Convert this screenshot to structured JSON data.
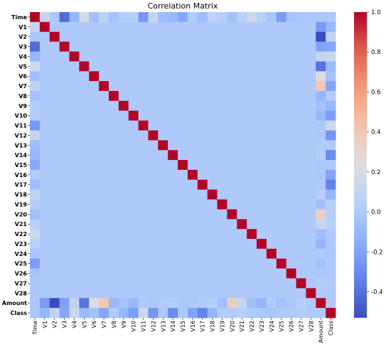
{
  "chart_data": {
    "type": "heatmap",
    "title": "Correlation Matrix",
    "labels": [
      "Time",
      "V1",
      "V2",
      "V3",
      "V4",
      "V5",
      "V6",
      "V7",
      "V8",
      "V9",
      "V10",
      "V11",
      "V12",
      "V13",
      "V14",
      "V15",
      "V16",
      "V17",
      "V18",
      "V19",
      "V20",
      "V21",
      "V22",
      "V23",
      "V24",
      "V25",
      "V26",
      "V27",
      "V28",
      "Amount",
      "Class"
    ],
    "colormap": "coolwarm",
    "vmin": -0.53,
    "vmax": 1.0,
    "colorbar_ticks": [
      "1.0",
      "0.8",
      "0.6",
      "0.4",
      "0.2",
      "0.0",
      "-0.2",
      "-0.4"
    ],
    "colorbar_tick_values": [
      1.0,
      0.8,
      0.6,
      0.4,
      0.2,
      0.0,
      -0.2,
      -0.4
    ],
    "matrix": [
      [
        1.0,
        0.12,
        -0.01,
        -0.42,
        -0.11,
        0.17,
        -0.06,
        0.08,
        -0.04,
        0.03,
        0.03,
        -0.25,
        0.12,
        -0.07,
        -0.1,
        -0.18,
        0.01,
        -0.07,
        0.09,
        0.03,
        -0.05,
        0.04,
        0.14,
        0.05,
        -0.02,
        -0.23,
        -0.04,
        -0.01,
        -0.01,
        -0.01,
        -0.01
      ],
      [
        0.12,
        1.0,
        0,
        0,
        0,
        0,
        0,
        0,
        0,
        0,
        0,
        0,
        0,
        0,
        0,
        0,
        0,
        0,
        0,
        0,
        0,
        0,
        0,
        0,
        0,
        0,
        0,
        0,
        0,
        -0.23,
        -0.1
      ],
      [
        -0.01,
        0,
        1.0,
        0,
        0,
        0,
        0,
        0,
        0,
        0,
        0,
        0,
        0,
        0,
        0,
        0,
        0,
        0,
        0,
        0,
        0,
        0,
        0,
        0,
        0,
        0,
        0,
        0,
        0,
        -0.53,
        0.09
      ],
      [
        -0.42,
        0,
        0,
        1.0,
        0,
        0,
        0,
        0,
        0,
        0,
        0,
        0,
        0,
        0,
        0,
        0,
        0,
        0,
        0,
        0,
        0,
        0,
        0,
        0,
        0,
        0,
        0,
        0,
        0,
        -0.21,
        -0.19
      ],
      [
        -0.11,
        0,
        0,
        0,
        1.0,
        0,
        0,
        0,
        0,
        0,
        0,
        0,
        0,
        0,
        0,
        0,
        0,
        0,
        0,
        0,
        0,
        0,
        0,
        0,
        0,
        0,
        0,
        0,
        0,
        0.1,
        0.13
      ],
      [
        0.17,
        0,
        0,
        0,
        0,
        1.0,
        0,
        0,
        0,
        0,
        0,
        0,
        0,
        0,
        0,
        0,
        0,
        0,
        0,
        0,
        0,
        0,
        0,
        0,
        0,
        0,
        0,
        0,
        0,
        -0.39,
        -0.09
      ],
      [
        -0.06,
        0,
        0,
        0,
        0,
        0,
        1.0,
        0,
        0,
        0,
        0,
        0,
        0,
        0,
        0,
        0,
        0,
        0,
        0,
        0,
        0,
        0,
        0,
        0,
        0,
        0,
        0,
        0,
        0,
        0.22,
        -0.04
      ],
      [
        0.08,
        0,
        0,
        0,
        0,
        0,
        0,
        1.0,
        0,
        0,
        0,
        0,
        0,
        0,
        0,
        0,
        0,
        0,
        0,
        0,
        0,
        0,
        0,
        0,
        0,
        0,
        0,
        0,
        0,
        0.4,
        -0.19
      ],
      [
        -0.04,
        0,
        0,
        0,
        0,
        0,
        0,
        0,
        1.0,
        0,
        0,
        0,
        0,
        0,
        0,
        0,
        0,
        0,
        0,
        0,
        0,
        0,
        0,
        0,
        0,
        0,
        0,
        0,
        0,
        -0.1,
        0.02
      ],
      [
        0.03,
        0,
        0,
        0,
        0,
        0,
        0,
        0,
        0,
        1.0,
        0,
        0,
        0,
        0,
        0,
        0,
        0,
        0,
        0,
        0,
        0,
        0,
        0,
        0,
        0,
        0,
        0,
        0,
        0,
        -0.04,
        -0.1
      ],
      [
        0.03,
        0,
        0,
        0,
        0,
        0,
        0,
        0,
        0,
        0,
        1.0,
        0,
        0,
        0,
        0,
        0,
        0,
        0,
        0,
        0,
        0,
        0,
        0,
        0,
        0,
        0,
        0,
        0,
        0,
        -0.1,
        -0.22
      ],
      [
        -0.25,
        0,
        0,
        0,
        0,
        0,
        0,
        0,
        0,
        0,
        0,
        1.0,
        0,
        0,
        0,
        0,
        0,
        0,
        0,
        0,
        0,
        0,
        0,
        0,
        0,
        0,
        0,
        0,
        0,
        0.0,
        0.15
      ],
      [
        0.12,
        0,
        0,
        0,
        0,
        0,
        0,
        0,
        0,
        0,
        0,
        0,
        1.0,
        0,
        0,
        0,
        0,
        0,
        0,
        0,
        0,
        0,
        0,
        0,
        0,
        0,
        0,
        0,
        0,
        -0.01,
        -0.26
      ],
      [
        -0.07,
        0,
        0,
        0,
        0,
        0,
        0,
        0,
        0,
        0,
        0,
        0,
        0,
        1.0,
        0,
        0,
        0,
        0,
        0,
        0,
        0,
        0,
        0,
        0,
        0,
        0,
        0,
        0,
        0,
        0.01,
        0.0
      ],
      [
        -0.1,
        0,
        0,
        0,
        0,
        0,
        0,
        0,
        0,
        0,
        0,
        0,
        0,
        0,
        1.0,
        0,
        0,
        0,
        0,
        0,
        0,
        0,
        0,
        0,
        0,
        0,
        0,
        0,
        0,
        0.03,
        -0.3
      ],
      [
        -0.18,
        0,
        0,
        0,
        0,
        0,
        0,
        0,
        0,
        0,
        0,
        0,
        0,
        0,
        0,
        1.0,
        0,
        0,
        0,
        0,
        0,
        0,
        0,
        0,
        0,
        0,
        0,
        0,
        0,
        -0.003,
        0.0
      ],
      [
        0.01,
        0,
        0,
        0,
        0,
        0,
        0,
        0,
        0,
        0,
        0,
        0,
        0,
        0,
        0,
        0,
        1.0,
        0,
        0,
        0,
        0,
        0,
        0,
        0,
        0,
        0,
        0,
        0,
        0,
        -0.004,
        -0.2
      ],
      [
        -0.07,
        0,
        0,
        0,
        0,
        0,
        0,
        0,
        0,
        0,
        0,
        0,
        0,
        0,
        0,
        0,
        0,
        1.0,
        0,
        0,
        0,
        0,
        0,
        0,
        0,
        0,
        0,
        0,
        0,
        0.01,
        -0.33
      ],
      [
        0.09,
        0,
        0,
        0,
        0,
        0,
        0,
        0,
        0,
        0,
        0,
        0,
        0,
        0,
        0,
        0,
        0,
        0,
        1.0,
        0,
        0,
        0,
        0,
        0,
        0,
        0,
        0,
        0,
        0,
        0.04,
        -0.11
      ],
      [
        0.03,
        0,
        0,
        0,
        0,
        0,
        0,
        0,
        0,
        0,
        0,
        0,
        0,
        0,
        0,
        0,
        0,
        0,
        0,
        1.0,
        0,
        0,
        0,
        0,
        0,
        0,
        0,
        0,
        0,
        -0.06,
        0.03
      ],
      [
        -0.05,
        0,
        0,
        0,
        0,
        0,
        0,
        0,
        0,
        0,
        0,
        0,
        0,
        0,
        0,
        0,
        0,
        0,
        0,
        0,
        1.0,
        0,
        0,
        0,
        0,
        0,
        0,
        0,
        0,
        0.34,
        0.02
      ],
      [
        0.04,
        0,
        0,
        0,
        0,
        0,
        0,
        0,
        0,
        0,
        0,
        0,
        0,
        0,
        0,
        0,
        0,
        0,
        0,
        0,
        0,
        1.0,
        0,
        0,
        0,
        0,
        0,
        0,
        0,
        0.11,
        0.04
      ],
      [
        0.14,
        0,
        0,
        0,
        0,
        0,
        0,
        0,
        0,
        0,
        0,
        0,
        0,
        0,
        0,
        0,
        0,
        0,
        0,
        0,
        0,
        0,
        1.0,
        0,
        0,
        0,
        0,
        0,
        0,
        -0.06,
        0.0
      ],
      [
        0.05,
        0,
        0,
        0,
        0,
        0,
        0,
        0,
        0,
        0,
        0,
        0,
        0,
        0,
        0,
        0,
        0,
        0,
        0,
        0,
        0,
        0,
        0,
        1.0,
        0,
        0,
        0,
        0,
        0,
        -0.11,
        -0.003
      ],
      [
        -0.02,
        0,
        0,
        0,
        0,
        0,
        0,
        0,
        0,
        0,
        0,
        0,
        0,
        0,
        0,
        0,
        0,
        0,
        0,
        0,
        0,
        0,
        0,
        0,
        1.0,
        0,
        0,
        0,
        0,
        0.01,
        -0.01
      ],
      [
        -0.23,
        0,
        0,
        0,
        0,
        0,
        0,
        0,
        0,
        0,
        0,
        0,
        0,
        0,
        0,
        0,
        0,
        0,
        0,
        0,
        0,
        0,
        0,
        0,
        0,
        1.0,
        0,
        0,
        0,
        -0.05,
        0.0
      ],
      [
        -0.04,
        0,
        0,
        0,
        0,
        0,
        0,
        0,
        0,
        0,
        0,
        0,
        0,
        0,
        0,
        0,
        0,
        0,
        0,
        0,
        0,
        0,
        0,
        0,
        0,
        0,
        1.0,
        0,
        0,
        -0.003,
        0.0
      ],
      [
        -0.01,
        0,
        0,
        0,
        0,
        0,
        0,
        0,
        0,
        0,
        0,
        0,
        0,
        0,
        0,
        0,
        0,
        0,
        0,
        0,
        0,
        0,
        0,
        0,
        0,
        0,
        0,
        1.0,
        0,
        0.03,
        0.02
      ],
      [
        -0.01,
        0,
        0,
        0,
        0,
        0,
        0,
        0,
        0,
        0,
        0,
        0,
        0,
        0,
        0,
        0,
        0,
        0,
        0,
        0,
        0,
        0,
        0,
        0,
        0,
        0,
        0,
        0,
        1.0,
        0.01,
        0.01
      ],
      [
        -0.01,
        -0.23,
        -0.53,
        -0.21,
        0.1,
        -0.39,
        0.22,
        0.4,
        -0.1,
        -0.04,
        -0.1,
        0.0,
        -0.01,
        0.01,
        0.03,
        -0.003,
        -0.004,
        0.01,
        0.04,
        -0.06,
        0.34,
        0.11,
        -0.06,
        -0.11,
        0.01,
        -0.05,
        -0.003,
        0.03,
        0.01,
        1.0,
        0.01
      ],
      [
        -0.01,
        -0.1,
        0.09,
        -0.19,
        0.13,
        -0.09,
        -0.04,
        -0.19,
        0.02,
        -0.1,
        -0.22,
        0.15,
        -0.26,
        0.0,
        -0.3,
        0.0,
        -0.2,
        -0.33,
        -0.11,
        0.03,
        0.02,
        0.04,
        0.0,
        -0.003,
        -0.01,
        0.0,
        0.0,
        0.02,
        0.01,
        0.01,
        1.0
      ]
    ]
  }
}
